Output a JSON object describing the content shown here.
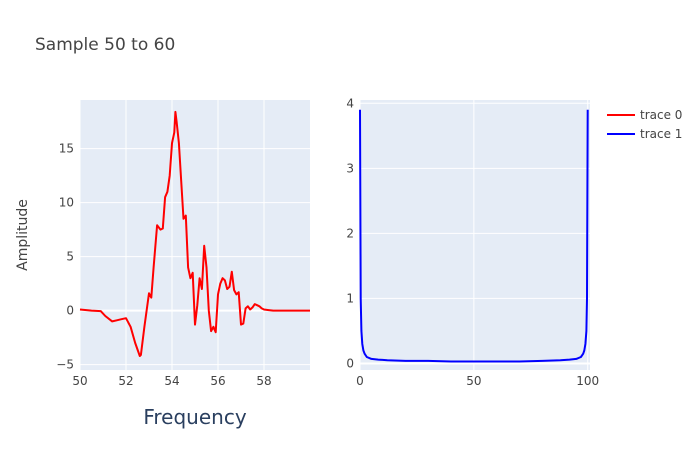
{
  "chart_data": [
    {
      "type": "line",
      "title": "Sample 50 to 60",
      "xlabel": "Frequency",
      "ylabel": "Amplitude",
      "xlim": [
        50,
        60
      ],
      "ylim": [
        -5.5,
        19.5
      ],
      "xticks": [
        50,
        52,
        54,
        56,
        58
      ],
      "xtick_labels": [
        "50",
        "52",
        "54",
        "56",
        "58"
      ],
      "yticks": [
        -5,
        0,
        5,
        10,
        15
      ],
      "ytick_labels": [
        "−5",
        "0",
        "5",
        "10",
        "15"
      ],
      "grid": true,
      "series": [
        {
          "name": "trace 0",
          "color": "#ff0000",
          "x": [
            50.0,
            50.5,
            50.9,
            51.1,
            51.4,
            51.6,
            51.8,
            52.0,
            52.2,
            52.4,
            52.6,
            52.65,
            52.8,
            53.0,
            53.1,
            53.2,
            53.35,
            53.5,
            53.6,
            53.7,
            53.8,
            53.9,
            54.0,
            54.1,
            54.15,
            54.2,
            54.3,
            54.4,
            54.5,
            54.6,
            54.7,
            54.8,
            54.9,
            55.0,
            55.1,
            55.2,
            55.3,
            55.4,
            55.5,
            55.6,
            55.7,
            55.8,
            55.9,
            56.0,
            56.1,
            56.2,
            56.3,
            56.4,
            56.5,
            56.6,
            56.7,
            56.8,
            56.9,
            57.0,
            57.1,
            57.2,
            57.3,
            57.4,
            57.5,
            57.6,
            57.7,
            57.8,
            57.9,
            58.0,
            58.2,
            58.4,
            58.6,
            58.8,
            59.0,
            59.3,
            59.6,
            60.0
          ],
          "y": [
            0.1,
            0.0,
            -0.05,
            -0.5,
            -1.0,
            -0.9,
            -0.8,
            -0.7,
            -1.5,
            -3.0,
            -4.2,
            -4.1,
            -1.5,
            1.6,
            1.2,
            4.0,
            7.9,
            7.5,
            7.6,
            10.5,
            11.0,
            12.5,
            15.5,
            16.5,
            18.4,
            17.5,
            15.5,
            12.0,
            8.5,
            8.8,
            4.0,
            3.0,
            3.5,
            -1.3,
            0.5,
            3.0,
            2.0,
            6.0,
            4.0,
            0.0,
            -1.9,
            -1.5,
            -2.0,
            1.5,
            2.5,
            3.0,
            2.8,
            2.0,
            2.2,
            3.6,
            1.9,
            1.5,
            1.7,
            -1.3,
            -1.2,
            0.2,
            0.4,
            0.1,
            0.3,
            0.6,
            0.5,
            0.4,
            0.2,
            0.1,
            0.05,
            0.0,
            0.0,
            0.0,
            0.0,
            0.0,
            0.0,
            0.0
          ]
        }
      ]
    },
    {
      "type": "line",
      "xlim": [
        0,
        101
      ],
      "ylim": [
        -0.1,
        4.05
      ],
      "xticks": [
        0,
        50,
        100
      ],
      "xtick_labels": [
        "0",
        "50",
        "100"
      ],
      "yticks": [
        0,
        1,
        2,
        3,
        4
      ],
      "ytick_labels": [
        "0",
        "1",
        "2",
        "3",
        "4"
      ],
      "grid": true,
      "series": [
        {
          "name": "trace 1",
          "color": "#0000ff",
          "x": [
            0,
            0.3,
            0.6,
            1.0,
            1.5,
            2.0,
            3.0,
            5.0,
            8.0,
            12.0,
            20.0,
            30.0,
            40.0,
            50.0,
            60.0,
            70.0,
            80.0,
            88.0,
            92.0,
            95.0,
            97.0,
            98.0,
            98.5,
            99.0,
            99.4,
            99.7,
            100.0
          ],
          "y": [
            3.9,
            1.0,
            0.5,
            0.3,
            0.2,
            0.15,
            0.1,
            0.07,
            0.06,
            0.05,
            0.04,
            0.04,
            0.03,
            0.03,
            0.03,
            0.03,
            0.04,
            0.05,
            0.06,
            0.07,
            0.1,
            0.15,
            0.2,
            0.3,
            0.5,
            1.0,
            3.9
          ]
        }
      ]
    }
  ],
  "legend": {
    "placement": "top-right",
    "items": [
      {
        "name": "trace 0",
        "color": "#ff0000"
      },
      {
        "name": "trace 1",
        "color": "#0000ff"
      }
    ]
  }
}
